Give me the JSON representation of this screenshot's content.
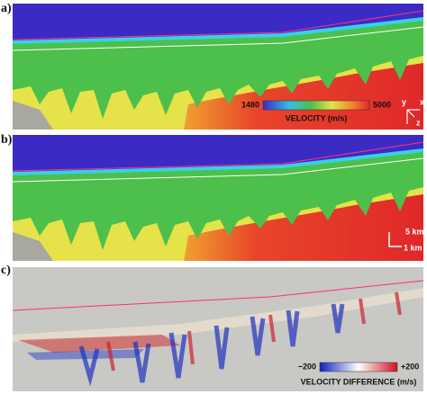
{
  "panels": [
    {
      "label": "a)",
      "colorbar": {
        "min": "1480",
        "max": "5000",
        "title": "VELOCITY (m/s)"
      },
      "axes": {
        "x": "x",
        "y": "y",
        "z": "z"
      }
    },
    {
      "label": "b)",
      "scale": {
        "horizontal": "5 km",
        "vertical": "1 km"
      }
    },
    {
      "label": "c)",
      "colorbar": {
        "min": "−200",
        "max": "+200",
        "title": "VELOCITY DIFFERENCE (m/s)"
      }
    }
  ]
}
